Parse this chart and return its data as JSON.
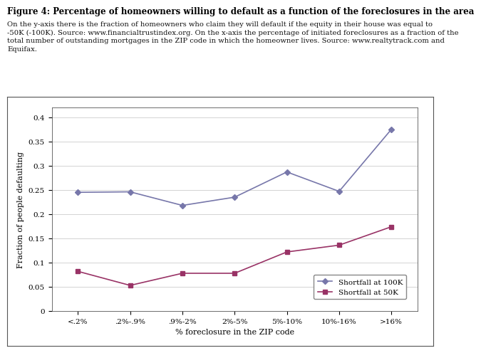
{
  "title": "Figure 4: Percentage of homeowners willing to default as a function of the foreclosures in the area",
  "subtitle_line1": "On the y-axis there is the fraction of homeowners who claim they will default if the equity in their house was equal to",
  "subtitle_line2": "-50K (-100K). Source: www.financialtrustindex.org. On the x-axis the percentage of initiated foreclosures as a fraction of the",
  "subtitle_line3": "total number of outstanding mortgages in the ZIP code in which the homeowner lives. Source: www.realtytrack.com and",
  "subtitle_line4": "Equifax.",
  "xlabel": "% foreclosure in the ZIP code",
  "ylabel": "Fraction of people defaulting",
  "x_labels": [
    "<.2%",
    ".2%-.9%",
    ".9%-2%",
    "2%-5%",
    "5%-10%",
    "10%-16%",
    ">16%"
  ],
  "y100k": [
    0.245,
    0.246,
    0.218,
    0.235,
    0.287,
    0.247,
    0.375
  ],
  "y50k": [
    0.082,
    0.053,
    0.078,
    0.078,
    0.122,
    0.136,
    0.174
  ],
  "color_100k": "#7777AA",
  "color_50k": "#993366",
  "marker_100k": "D",
  "marker_50k": "s",
  "ylim": [
    0,
    0.42
  ],
  "yticks": [
    0,
    0.05,
    0.1,
    0.15,
    0.2,
    0.25,
    0.3,
    0.35,
    0.4
  ],
  "legend_100k": "Shortfall at 100K",
  "legend_50k": "Shortfall at 50K",
  "bg_color": "#ffffff",
  "title_fontsize": 8.5,
  "subtitle_fontsize": 7.2,
  "axis_label_fontsize": 8,
  "tick_fontsize": 7.5,
  "legend_fontsize": 7.5
}
